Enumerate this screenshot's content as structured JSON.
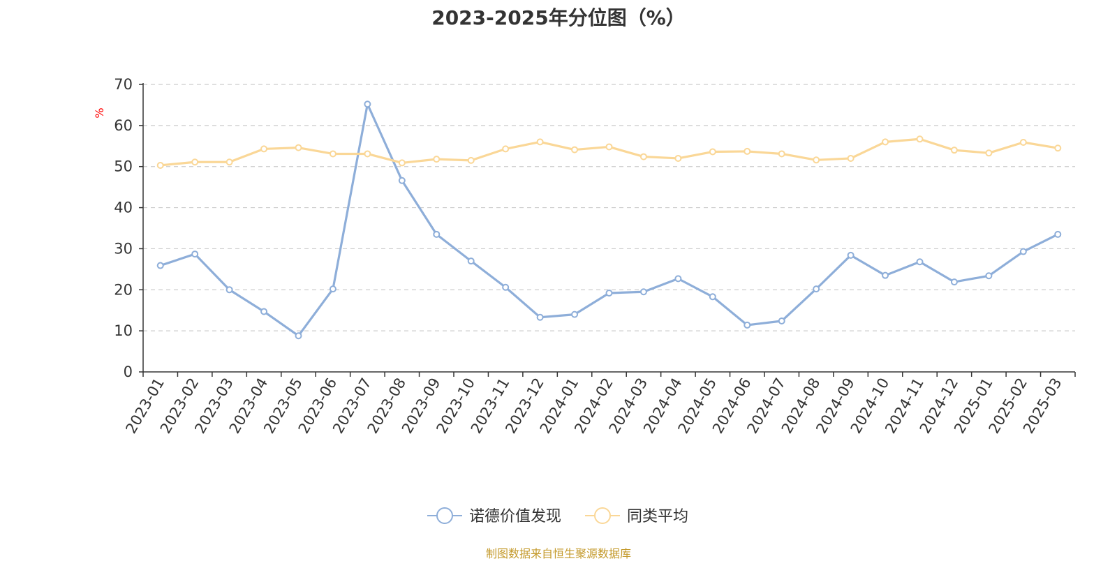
{
  "chart_data": {
    "type": "line",
    "title": "2023-2025年分位图（%）",
    "ylabel": "%",
    "xlabel": "",
    "ylim": [
      0,
      70
    ],
    "yticks": [
      0,
      10,
      20,
      30,
      40,
      50,
      60,
      70
    ],
    "grid": true,
    "legend_position": "bottom",
    "categories": [
      "2023-01",
      "2023-02",
      "2023-03",
      "2023-04",
      "2023-05",
      "2023-06",
      "2023-07",
      "2023-08",
      "2023-09",
      "2023-10",
      "2023-11",
      "2023-12",
      "2024-01",
      "2024-02",
      "2024-03",
      "2024-04",
      "2024-05",
      "2024-06",
      "2024-07",
      "2024-08",
      "2024-09",
      "2024-10",
      "2024-11",
      "2024-12",
      "2025-01",
      "2025-02",
      "2025-03"
    ],
    "series": [
      {
        "name": "诺德价值发现",
        "color": "#8eaed9",
        "values": [
          25.9,
          28.7,
          20.0,
          14.7,
          8.8,
          20.2,
          65.2,
          46.6,
          33.5,
          27.0,
          20.6,
          13.3,
          14.0,
          19.2,
          19.5,
          22.7,
          18.3,
          11.4,
          12.4,
          20.2,
          28.4,
          23.5,
          26.8,
          21.9,
          23.4,
          29.3,
          33.5
        ]
      },
      {
        "name": "同类平均",
        "color": "#fad797",
        "values": [
          50.3,
          51.1,
          51.1,
          54.3,
          54.6,
          53.1,
          53.1,
          50.9,
          51.8,
          51.5,
          54.3,
          56.0,
          54.1,
          54.8,
          52.4,
          52.0,
          53.6,
          53.7,
          53.1,
          51.6,
          52.0,
          56.0,
          56.7,
          54.0,
          53.3,
          55.9,
          54.5
        ]
      }
    ]
  },
  "source_text": "制图数据来自恒生聚源数据库"
}
